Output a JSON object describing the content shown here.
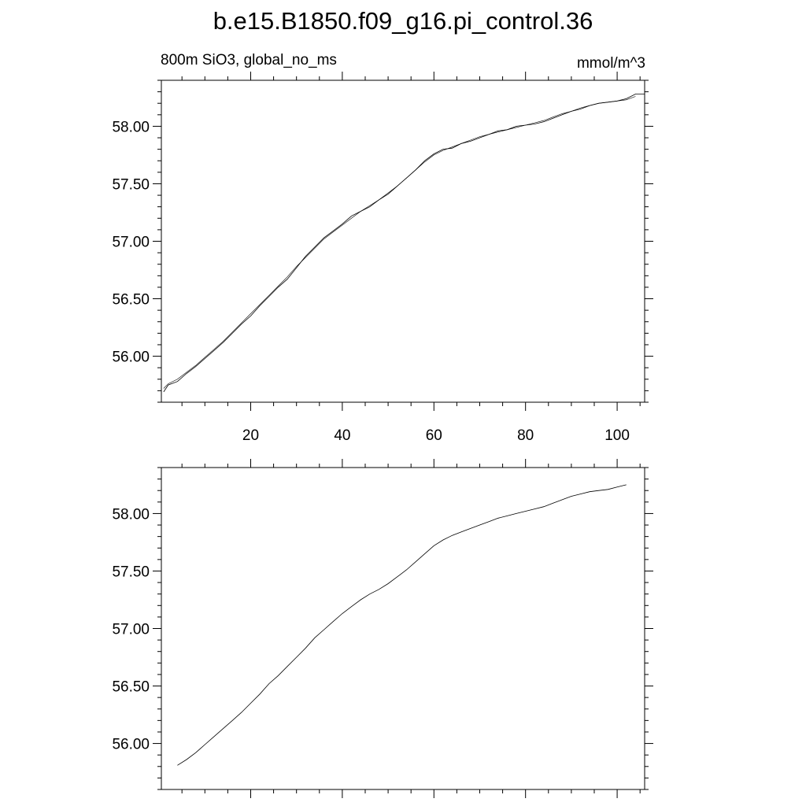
{
  "figure": {
    "title": "b.e15.B1850.f09_g16.pi_control.36"
  },
  "chart_data": [
    {
      "type": "line",
      "subtitle_left": "800m SiO3, global_no_ms",
      "subtitle_right": "mmol/m^3",
      "xlim": [
        0.5,
        106
      ],
      "ylim": [
        55.6,
        58.4
      ],
      "x_ticks": [
        20,
        40,
        60,
        80,
        100
      ],
      "x_tick_labels": [
        "20",
        "40",
        "60",
        "80",
        "100"
      ],
      "y_ticks": [
        56.0,
        56.5,
        57.0,
        57.5,
        58.0
      ],
      "y_tick_labels": [
        "56.00",
        "56.50",
        "57.00",
        "57.50",
        "58.00"
      ],
      "series": [
        {
          "x": [
            1,
            2,
            4,
            6,
            8,
            10,
            12,
            14,
            16,
            18,
            20,
            22,
            24,
            26,
            28,
            30,
            32,
            34,
            36,
            38,
            40,
            42,
            44,
            46,
            48,
            50,
            52,
            54,
            56,
            58,
            60,
            62,
            64,
            66,
            68,
            70,
            72,
            74,
            76,
            78,
            80,
            82,
            84,
            86,
            88,
            90,
            92,
            94,
            96,
            98,
            100,
            102,
            104,
            106
          ],
          "values": [
            55.69,
            55.75,
            55.78,
            55.85,
            55.91,
            55.98,
            56.05,
            56.12,
            56.2,
            56.28,
            56.35,
            56.44,
            56.52,
            56.6,
            56.67,
            56.77,
            56.87,
            56.95,
            57.03,
            57.09,
            57.15,
            57.22,
            57.26,
            57.3,
            57.36,
            57.41,
            57.48,
            57.55,
            57.62,
            57.7,
            57.76,
            57.8,
            57.81,
            57.85,
            57.87,
            57.9,
            57.93,
            57.96,
            57.97,
            58.0,
            58.01,
            58.02,
            58.04,
            58.07,
            58.1,
            58.13,
            58.15,
            58.18,
            58.2,
            58.21,
            58.22,
            58.24,
            58.28,
            58.28
          ]
        },
        {
          "x": [
            1,
            2,
            4,
            6,
            8,
            10,
            12,
            14,
            16,
            18,
            20,
            22,
            24,
            26,
            28,
            30,
            32,
            34,
            36,
            38,
            40,
            42,
            44,
            46,
            48,
            50,
            52,
            54,
            56,
            58,
            60,
            62,
            64,
            66,
            68,
            70,
            72,
            74,
            76,
            78,
            80,
            82,
            84,
            86,
            88,
            90,
            92,
            94,
            96,
            98,
            100,
            102,
            104
          ],
          "values": [
            55.72,
            55.76,
            55.8,
            55.86,
            55.92,
            55.99,
            56.06,
            56.13,
            56.21,
            56.29,
            56.37,
            56.45,
            56.53,
            56.61,
            56.69,
            56.78,
            56.86,
            56.94,
            57.02,
            57.08,
            57.14,
            57.2,
            57.26,
            57.31,
            57.36,
            57.42,
            57.48,
            57.55,
            57.62,
            57.69,
            57.75,
            57.79,
            57.82,
            57.85,
            57.88,
            57.91,
            57.93,
            57.95,
            57.97,
            57.99,
            58.01,
            58.03,
            58.05,
            58.08,
            58.11,
            58.13,
            58.16,
            58.18,
            58.2,
            58.21,
            58.22,
            58.23,
            58.26
          ]
        }
      ]
    },
    {
      "type": "line",
      "xlim": [
        0.5,
        106
      ],
      "ylim": [
        55.6,
        58.4
      ],
      "x_ticks": [
        20,
        40,
        60,
        80,
        100
      ],
      "y_ticks": [
        56.0,
        56.5,
        57.0,
        57.5,
        58.0
      ],
      "y_tick_labels": [
        "56.00",
        "56.50",
        "57.00",
        "57.50",
        "58.00"
      ],
      "series": [
        {
          "x": [
            4,
            6,
            8,
            10,
            12,
            14,
            16,
            18,
            20,
            22,
            24,
            26,
            28,
            30,
            32,
            34,
            36,
            38,
            40,
            42,
            44,
            46,
            48,
            50,
            52,
            54,
            56,
            58,
            60,
            62,
            64,
            66,
            68,
            70,
            72,
            74,
            76,
            78,
            80,
            82,
            84,
            86,
            88,
            90,
            92,
            94,
            96,
            98,
            100,
            102
          ],
          "values": [
            55.81,
            55.86,
            55.92,
            55.99,
            56.06,
            56.13,
            56.2,
            56.27,
            56.35,
            56.43,
            56.52,
            56.59,
            56.67,
            56.75,
            56.83,
            56.92,
            56.99,
            57.06,
            57.13,
            57.19,
            57.25,
            57.3,
            57.34,
            57.39,
            57.45,
            57.51,
            57.58,
            57.65,
            57.72,
            57.77,
            57.81,
            57.84,
            57.87,
            57.9,
            57.93,
            57.96,
            57.98,
            58.0,
            58.02,
            58.04,
            58.06,
            58.09,
            58.12,
            58.15,
            58.17,
            58.19,
            58.2,
            58.21,
            58.23,
            58.25
          ]
        }
      ]
    }
  ]
}
